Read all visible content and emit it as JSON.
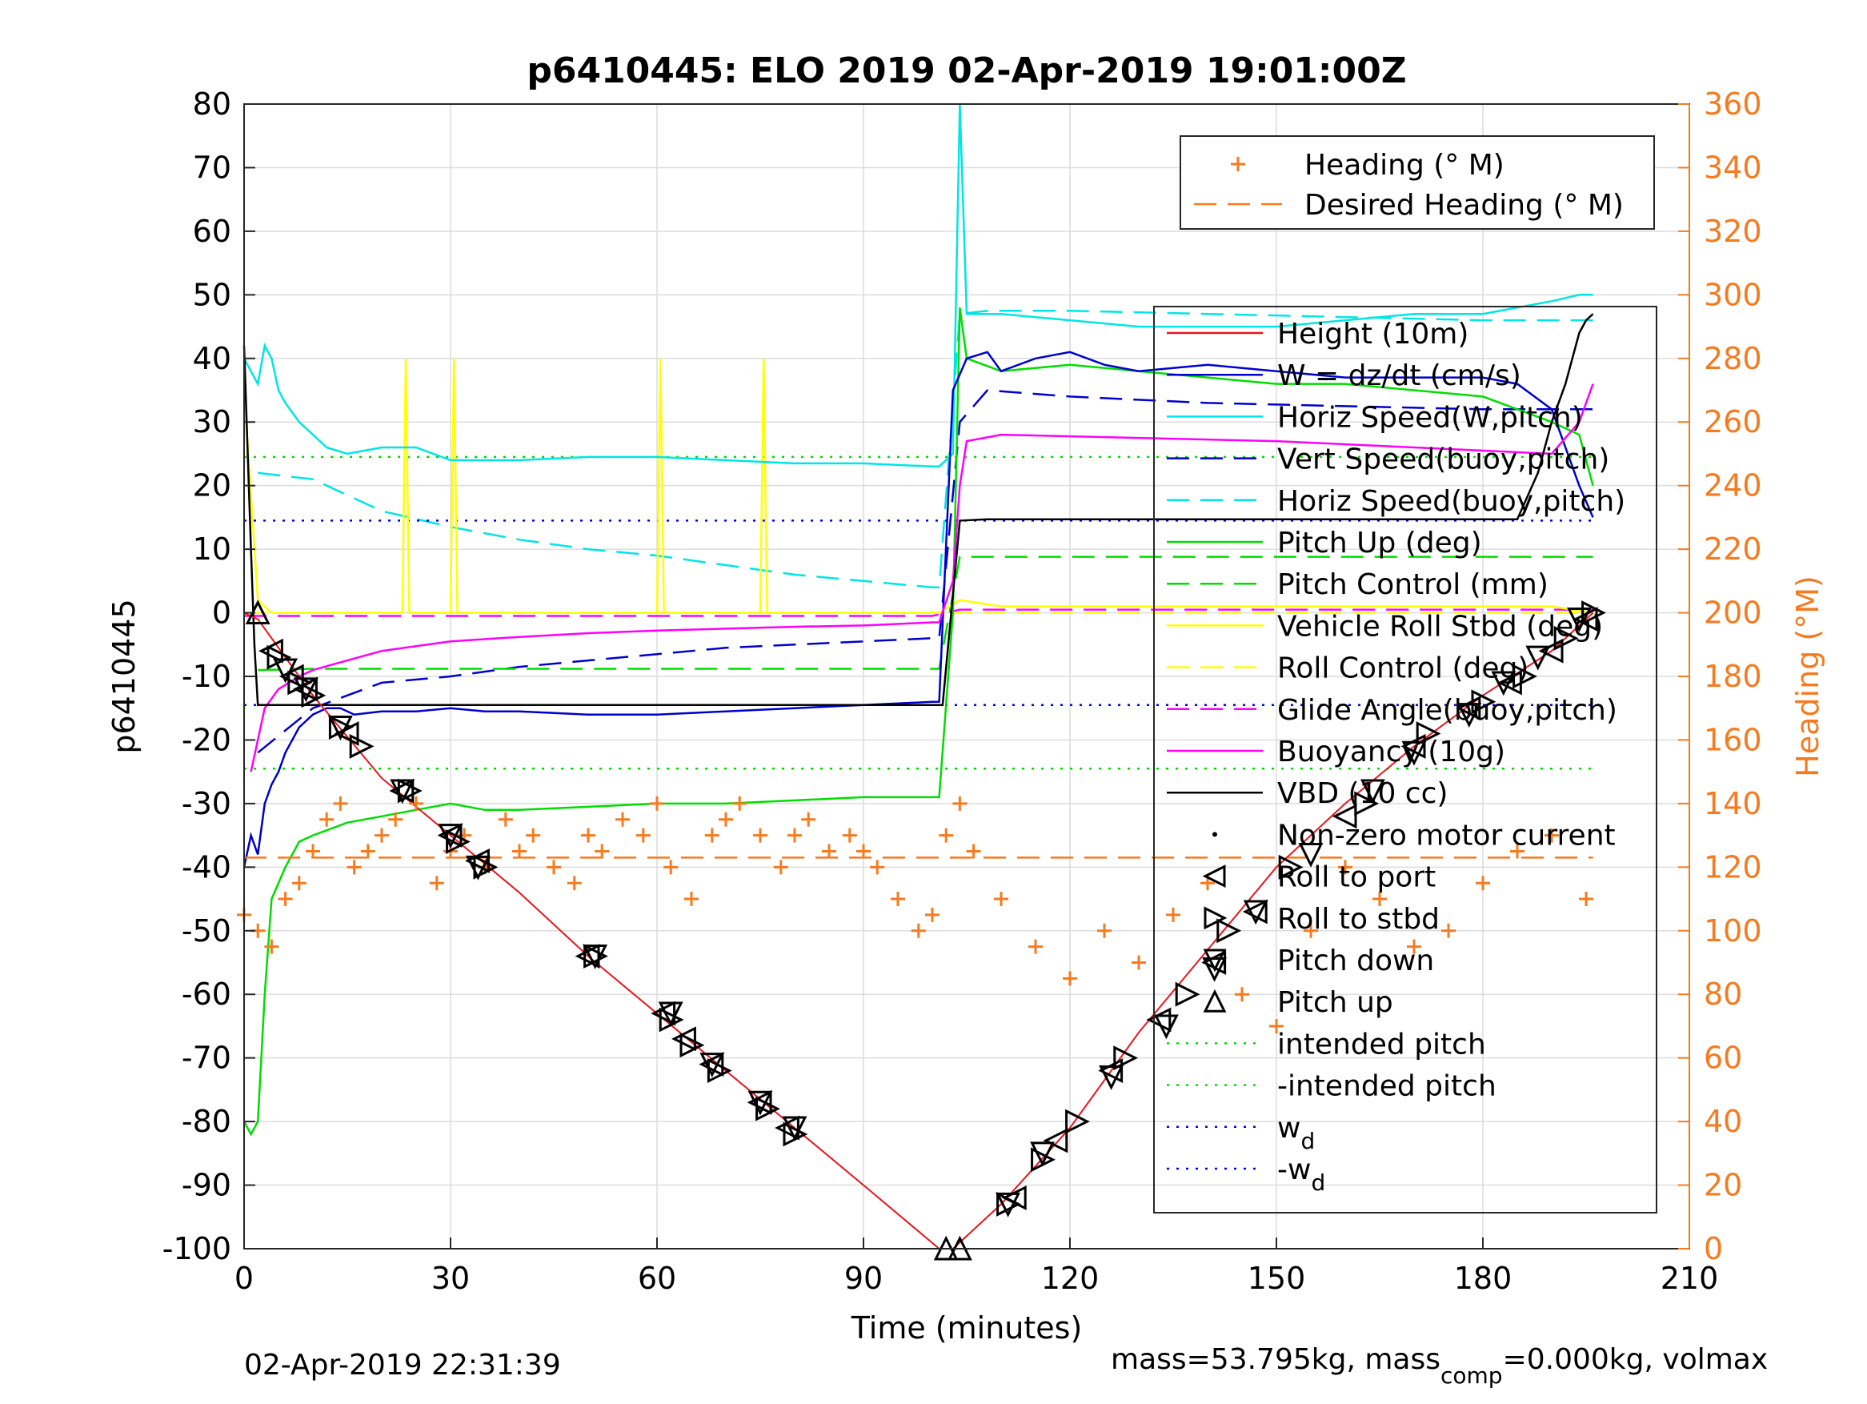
{
  "chart_data": {
    "type": "line",
    "title": "p6410445: ELO 2019 02-Apr-2019 19:01:00Z",
    "xlabel": "Time (minutes)",
    "ylabel": "p6410445",
    "ylabel_right": "Heading (°M)",
    "xlim": [
      0,
      210
    ],
    "ylim": [
      -100,
      80
    ],
    "ylim_right": [
      0,
      360
    ],
    "x_ticks": [
      "0",
      "30",
      "60",
      "90",
      "120",
      "150",
      "180",
      "210"
    ],
    "y_ticks": [
      "80",
      "70",
      "60",
      "50",
      "40",
      "30",
      "20",
      "10",
      "0",
      "-10",
      "-20",
      "-30",
      "-40",
      "-50",
      "-60",
      "-70",
      "-80",
      "-90",
      "-100"
    ],
    "y_ticks_right": [
      "360",
      "340",
      "320",
      "300",
      "280",
      "260",
      "240",
      "220",
      "200",
      "180",
      "160",
      "140",
      "120",
      "100",
      "80",
      "60",
      "40",
      "20",
      "0"
    ],
    "grid": true,
    "footer_left": "02-Apr-2019 22:31:39",
    "footer_right": {
      "part1": "mass=53.795kg, mass",
      "sub": "comp",
      "part2": "=0.000kg, volmax"
    },
    "colors": {
      "height": "#e8141e",
      "w": "#0000cc",
      "horiz_speed": "#00e5e5",
      "vert_speed_buoy": "#0000cc",
      "horiz_speed_buoy": "#00e5e5",
      "pitch_up": "#00dd00",
      "pitch_control": "#00dd00",
      "roll_stbd": "#ffff00",
      "roll_control": "#ffff00",
      "glide_angle": "#ff00ff",
      "buoyancy": "#ff00ff",
      "vbd": "#000000",
      "heading": "#f47b20",
      "intended_pitch": "#00dd00",
      "wd": "#0000ee"
    },
    "legend_heading": [
      {
        "label": "Heading (° M)",
        "style": "marker-plus",
        "color": "#f47b20"
      },
      {
        "label": "Desired Heading (° M)",
        "style": "dash",
        "color": "#f47b20"
      }
    ],
    "legend_main": [
      {
        "label": "Height (10m)",
        "style": "solid",
        "color": "#e8141e"
      },
      {
        "label": "W = dz/dt (cm/s)",
        "style": "solid",
        "color": "#0000cc"
      },
      {
        "label": "Horiz Speed(W,pitch)",
        "style": "solid",
        "color": "#00e5e5"
      },
      {
        "label": "Vert Speed(buoy,pitch)",
        "style": "dash",
        "color": "#0000cc"
      },
      {
        "label": "Horiz Speed(buoy,pitch)",
        "style": "dash",
        "color": "#00e5e5"
      },
      {
        "label": "Pitch Up (deg)",
        "style": "solid",
        "color": "#00dd00"
      },
      {
        "label": "Pitch Control (mm)",
        "style": "dash",
        "color": "#00dd00"
      },
      {
        "label": "Vehicle Roll Stbd (deg)",
        "style": "solid",
        "color": "#ffff00"
      },
      {
        "label": "Roll Control (deg)",
        "style": "dash",
        "color": "#ffff00"
      },
      {
        "label": "Glide Angle(buoy,pitch)",
        "style": "dash",
        "color": "#ff00ff"
      },
      {
        "label": "Buoyancy (10g)",
        "style": "solid",
        "color": "#ff00ff"
      },
      {
        "label": "VBD (10 cc)",
        "style": "solid",
        "color": "#000000"
      },
      {
        "label": "Non-zero motor current",
        "style": "dot",
        "color": "#000000"
      },
      {
        "label": "Roll to port",
        "style": "tri-left",
        "color": "#000000"
      },
      {
        "label": "Roll to stbd",
        "style": "tri-right",
        "color": "#000000"
      },
      {
        "label": "Pitch down",
        "style": "tri-down",
        "color": "#000000"
      },
      {
        "label": "Pitch up",
        "style": "tri-up",
        "color": "#000000"
      },
      {
        "label": "intended pitch",
        "style": "dotted",
        "color": "#00dd00"
      },
      {
        "label": "-intended pitch",
        "style": "dotted",
        "color": "#00dd00"
      },
      {
        "label": "w",
        "sub": "d",
        "style": "dotted",
        "color": "#0000ee"
      },
      {
        "label": "-w",
        "sub": "d",
        "style": "dotted",
        "color": "#0000ee"
      }
    ],
    "series": [
      {
        "key": "height",
        "style": "solid",
        "x": [
          0,
          2,
          10,
          20,
          30,
          40,
          50,
          60,
          70,
          80,
          90,
          101,
          103,
          110,
          120,
          130,
          140,
          150,
          160,
          170,
          180,
          190,
          196
        ],
        "y": [
          0,
          -1,
          -13,
          -26,
          -35,
          -44,
          -54,
          -63,
          -72,
          -81,
          -90,
          -100,
          -100,
          -93,
          -81,
          -66,
          -53,
          -40,
          -30,
          -21,
          -13,
          -6,
          0
        ]
      },
      {
        "key": "vbd",
        "style": "solid",
        "x": [
          0,
          1,
          1.5,
          2,
          20,
          40,
          60,
          80,
          100,
          101.5,
          104,
          108,
          150,
          185,
          188,
          190,
          192,
          193,
          194,
          195,
          196
        ],
        "y": [
          42,
          10,
          -5,
          -14.5,
          -14.5,
          -14.5,
          -14.5,
          -14.5,
          -14.5,
          -14.5,
          14.5,
          14.7,
          14.7,
          14.7,
          22,
          30,
          36,
          40,
          44,
          46,
          47
        ]
      },
      {
        "key": "w",
        "style": "solid",
        "x": [
          0,
          1,
          2,
          3,
          4,
          5,
          6,
          8,
          10,
          12,
          14,
          16,
          20,
          25,
          30,
          35,
          40,
          50,
          60,
          70,
          80,
          90,
          100,
          101,
          103,
          105,
          108,
          110,
          115,
          120,
          125,
          130,
          140,
          150,
          160,
          170,
          180,
          185,
          190,
          194,
          196
        ],
        "y": [
          -40,
          -35,
          -38,
          -30,
          -27,
          -25,
          -22,
          -18,
          -16,
          -15,
          -15,
          -16,
          -15.5,
          -15.5,
          -15,
          -15.5,
          -15.5,
          -16,
          -16,
          -15.5,
          -15,
          -14.5,
          -14,
          -14,
          35,
          40,
          41,
          38,
          40,
          41,
          39,
          38,
          39,
          38,
          37,
          37,
          37,
          36,
          32,
          20,
          15
        ]
      },
      {
        "key": "horiz_speed",
        "style": "solid",
        "x": [
          0,
          1,
          2,
          3,
          4,
          5,
          6,
          8,
          10,
          12,
          15,
          20,
          25,
          30,
          35,
          40,
          50,
          60,
          70,
          80,
          90,
          100,
          101,
          103,
          104,
          105,
          110,
          120,
          130,
          140,
          150,
          160,
          170,
          180,
          185,
          190,
          194,
          196
        ],
        "y": [
          40,
          38,
          36,
          42,
          40,
          35,
          33,
          30,
          28,
          26,
          25,
          26,
          26,
          24,
          24,
          24,
          24.5,
          24.5,
          24,
          23.5,
          23.5,
          23,
          23,
          25,
          80,
          47,
          47,
          46,
          45,
          45,
          45,
          46,
          47,
          47,
          48,
          49,
          50,
          50
        ]
      },
      {
        "key": "vert_speed_buoy",
        "style": "dash",
        "x": [
          2,
          10,
          20,
          30,
          40,
          50,
          60,
          70,
          80,
          90,
          100,
          101,
          104,
          108,
          120,
          140,
          160,
          180,
          196
        ],
        "y": [
          -22,
          -15,
          -11,
          -10,
          -8.5,
          -7.5,
          -6.5,
          -5.5,
          -5,
          -4.5,
          -4,
          -4,
          30,
          35,
          34,
          33,
          32.5,
          32,
          32
        ]
      },
      {
        "key": "horiz_speed_buoy",
        "style": "dash",
        "x": [
          2,
          10,
          20,
          30,
          40,
          50,
          60,
          70,
          80,
          90,
          100,
          101,
          104,
          108,
          120,
          140,
          160,
          180,
          196
        ],
        "y": [
          22,
          21,
          16,
          13.5,
          11.5,
          10,
          9,
          7.5,
          6,
          5,
          4,
          4,
          47,
          47.5,
          47.5,
          47,
          46.5,
          46,
          46
        ]
      },
      {
        "key": "pitch_up",
        "style": "solid",
        "x": [
          0,
          1,
          2,
          3,
          4,
          6,
          8,
          10,
          15,
          20,
          25,
          30,
          35,
          40,
          50,
          60,
          70,
          80,
          90,
          100,
          101,
          103,
          104,
          105,
          110,
          120,
          130,
          140,
          150,
          160,
          170,
          180,
          185,
          190,
          194,
          196
        ],
        "y": [
          -80,
          -82,
          -80,
          -60,
          -45,
          -40,
          -36,
          -35,
          -33,
          -32,
          -31,
          -30,
          -31,
          -31,
          -30.5,
          -30,
          -30,
          -29.5,
          -29,
          -29,
          -29,
          0,
          48,
          40,
          38,
          39,
          38,
          37,
          36,
          36,
          35,
          34,
          32,
          30,
          28,
          20
        ]
      },
      {
        "key": "pitch_control",
        "style": "dash",
        "x": [
          2,
          10,
          50,
          100,
          101,
          104,
          196
        ],
        "y": [
          -9,
          -8.8,
          -8.8,
          -8.8,
          -8.8,
          8.8,
          8.8
        ]
      },
      {
        "key": "roll_stbd",
        "style": "solid",
        "x": [
          0,
          2,
          4,
          6,
          8,
          10,
          20,
          23,
          23.5,
          24,
          30,
          30.5,
          31,
          50,
          60,
          60.5,
          61,
          75,
          75.5,
          76,
          100,
          101,
          104,
          110,
          120,
          130,
          140,
          150,
          160,
          170,
          180,
          190,
          196
        ],
        "y": [
          35,
          2,
          0,
          0,
          0,
          0,
          0,
          0,
          40,
          0,
          0,
          40,
          0,
          0,
          0,
          40,
          0,
          0,
          40,
          0,
          0,
          0,
          2,
          1,
          1,
          1,
          1,
          1,
          1,
          1,
          1,
          1,
          0
        ]
      },
      {
        "key": "roll_control",
        "style": "dash",
        "x": [
          0,
          100,
          104,
          196
        ],
        "y": [
          0,
          0,
          0,
          0
        ]
      },
      {
        "key": "glide_angle",
        "style": "dash",
        "x": [
          0,
          100,
          104,
          196
        ],
        "y": [
          -0.5,
          -0.5,
          0.5,
          0.5
        ]
      },
      {
        "key": "buoyancy",
        "style": "solid",
        "x": [
          1,
          2,
          3,
          5,
          8,
          10,
          15,
          20,
          30,
          40,
          50,
          60,
          70,
          80,
          90,
          100,
          101,
          103,
          104,
          105,
          110,
          130,
          150,
          170,
          190,
          194,
          196
        ],
        "y": [
          -25,
          -20,
          -15,
          -12,
          -10,
          -9,
          -7.5,
          -6,
          -4.5,
          -3.8,
          -3.2,
          -2.8,
          -2.5,
          -2.2,
          -2,
          -1.5,
          -1.5,
          5,
          20,
          27,
          28,
          27.5,
          27,
          26,
          25,
          30,
          36
        ]
      },
      {
        "key": "heading",
        "style": "plus",
        "x": [
          0,
          2,
          4,
          6,
          8,
          10,
          12,
          14,
          16,
          18,
          20,
          22,
          25,
          28,
          30,
          32,
          35,
          38,
          40,
          42,
          45,
          48,
          50,
          52,
          55,
          58,
          60,
          62,
          65,
          68,
          70,
          72,
          75,
          78,
          80,
          82,
          85,
          88,
          90,
          92,
          95,
          98,
          100,
          102,
          104,
          106,
          110,
          115,
          120,
          125,
          130,
          135,
          140,
          145,
          150,
          155,
          160,
          165,
          170,
          175,
          180,
          185,
          190,
          195
        ],
        "y": [
          105,
          100,
          95,
          110,
          115,
          125,
          135,
          140,
          120,
          125,
          130,
          135,
          140,
          115,
          125,
          130,
          120,
          135,
          125,
          130,
          120,
          115,
          130,
          125,
          135,
          130,
          140,
          120,
          110,
          130,
          135,
          140,
          130,
          120,
          130,
          135,
          125,
          130,
          125,
          120,
          110,
          100,
          105,
          130,
          140,
          125,
          110,
          95,
          85,
          100,
          90,
          105,
          115,
          80,
          70,
          100,
          120,
          110,
          95,
          100,
          115,
          125,
          130,
          110
        ]
      },
      {
        "key": "desired_heading",
        "style": "dash",
        "x": [
          0,
          100,
          104,
          196
        ],
        "y": [
          123,
          123,
          123,
          123
        ]
      },
      {
        "key": "intended_pitch",
        "style": "dotted",
        "x": [
          0,
          196
        ],
        "y": [
          24.5,
          24.5
        ]
      },
      {
        "key": "neg_intended_pitch",
        "style": "dotted",
        "x": [
          0,
          196
        ],
        "y": [
          -24.5,
          -24.5
        ]
      },
      {
        "key": "wd",
        "style": "dotted",
        "x": [
          0,
          196
        ],
        "y": [
          14.5,
          14.5
        ]
      },
      {
        "key": "neg_wd",
        "style": "dotted",
        "x": [
          0,
          196
        ],
        "y": [
          -14.5,
          -14.5
        ]
      }
    ],
    "markers": {
      "roll_to_port": {
        "x": [
          4,
          7,
          9,
          15,
          23,
          30,
          34,
          50,
          61,
          64,
          68,
          75,
          79,
          112,
          118,
          126,
          133,
          141,
          147,
          160,
          170,
          178,
          184,
          190,
          195
        ],
        "y": [
          -6,
          -10,
          -12,
          -19,
          -28,
          -35,
          -39,
          -54,
          -63,
          -67,
          -71,
          -77,
          -81,
          -92,
          -83,
          -72,
          -64,
          -55,
          -47,
          -32,
          -21,
          -15,
          -11,
          -6,
          -1
        ]
      },
      "roll_to_stbd": {
        "x": [
          5,
          8,
          10,
          14,
          17,
          24,
          31,
          35,
          51,
          62,
          65,
          69,
          76,
          80,
          111,
          116,
          121,
          128,
          137,
          143,
          152,
          163,
          172,
          180,
          186,
          192,
          196
        ],
        "y": [
          -7,
          -11,
          -13,
          -18,
          -21,
          -28,
          -36,
          -40,
          -54,
          -64,
          -68,
          -72,
          -78,
          -82,
          -93,
          -86,
          -80,
          -70,
          -60,
          -50,
          -40,
          -30,
          -19,
          -14,
          -10,
          -4,
          0
        ]
      },
      "pitch_down": {
        "x": [
          6,
          9,
          14,
          23,
          30,
          34,
          51,
          62,
          68,
          75,
          80,
          111,
          116,
          126,
          134,
          141,
          147,
          155,
          164,
          170,
          178,
          183,
          188,
          194
        ],
        "y": [
          -9,
          -12,
          -18,
          -28,
          -35,
          -40,
          -54,
          -63,
          -71,
          -77,
          -81,
          -93,
          -85,
          -73,
          -65,
          -56,
          -47,
          -38,
          -28,
          -22,
          -16,
          -11,
          -7,
          -1
        ]
      },
      "pitch_up": {
        "x": [
          2,
          102,
          104
        ],
        "y": [
          0,
          -100,
          -100
        ]
      }
    }
  }
}
